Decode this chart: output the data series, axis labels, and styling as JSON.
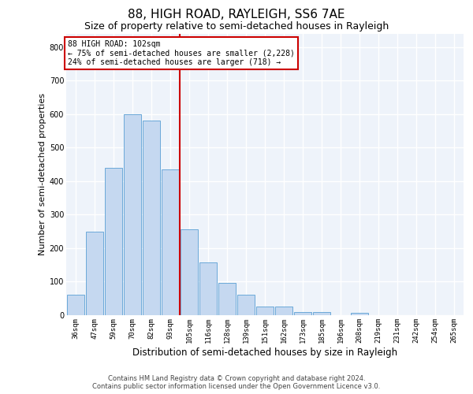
{
  "title": "88, HIGH ROAD, RAYLEIGH, SS6 7AE",
  "subtitle": "Size of property relative to semi-detached houses in Rayleigh",
  "xlabel": "Distribution of semi-detached houses by size in Rayleigh",
  "ylabel": "Number of semi-detached properties",
  "categories": [
    "36sqm",
    "47sqm",
    "59sqm",
    "70sqm",
    "82sqm",
    "93sqm",
    "105sqm",
    "116sqm",
    "128sqm",
    "139sqm",
    "151sqm",
    "162sqm",
    "173sqm",
    "185sqm",
    "196sqm",
    "208sqm",
    "219sqm",
    "231sqm",
    "242sqm",
    "254sqm",
    "265sqm"
  ],
  "values": [
    60,
    250,
    440,
    600,
    580,
    435,
    255,
    158,
    97,
    60,
    25,
    25,
    10,
    10,
    0,
    8,
    0,
    0,
    0,
    0,
    0
  ],
  "bar_color": "#c5d8f0",
  "bar_edge_color": "#5a9fd4",
  "vline_x": 5.5,
  "vline_color": "#cc0000",
  "annotation_title": "88 HIGH ROAD: 102sqm",
  "annotation_smaller": "← 75% of semi-detached houses are smaller (2,228)",
  "annotation_larger": "24% of semi-detached houses are larger (718) →",
  "annotation_box_facecolor": "#ffffff",
  "annotation_box_edgecolor": "#cc0000",
  "ylim": [
    0,
    840
  ],
  "yticks": [
    0,
    100,
    200,
    300,
    400,
    500,
    600,
    700,
    800
  ],
  "background_color": "#eef3fa",
  "grid_color": "#ffffff",
  "footer_line1": "Contains HM Land Registry data © Crown copyright and database right 2024.",
  "footer_line2": "Contains public sector information licensed under the Open Government Licence v3.0.",
  "title_fontsize": 11,
  "subtitle_fontsize": 9,
  "tick_fontsize": 6.5,
  "ylabel_fontsize": 8,
  "xlabel_fontsize": 8.5,
  "annotation_fontsize": 7,
  "footer_fontsize": 6
}
